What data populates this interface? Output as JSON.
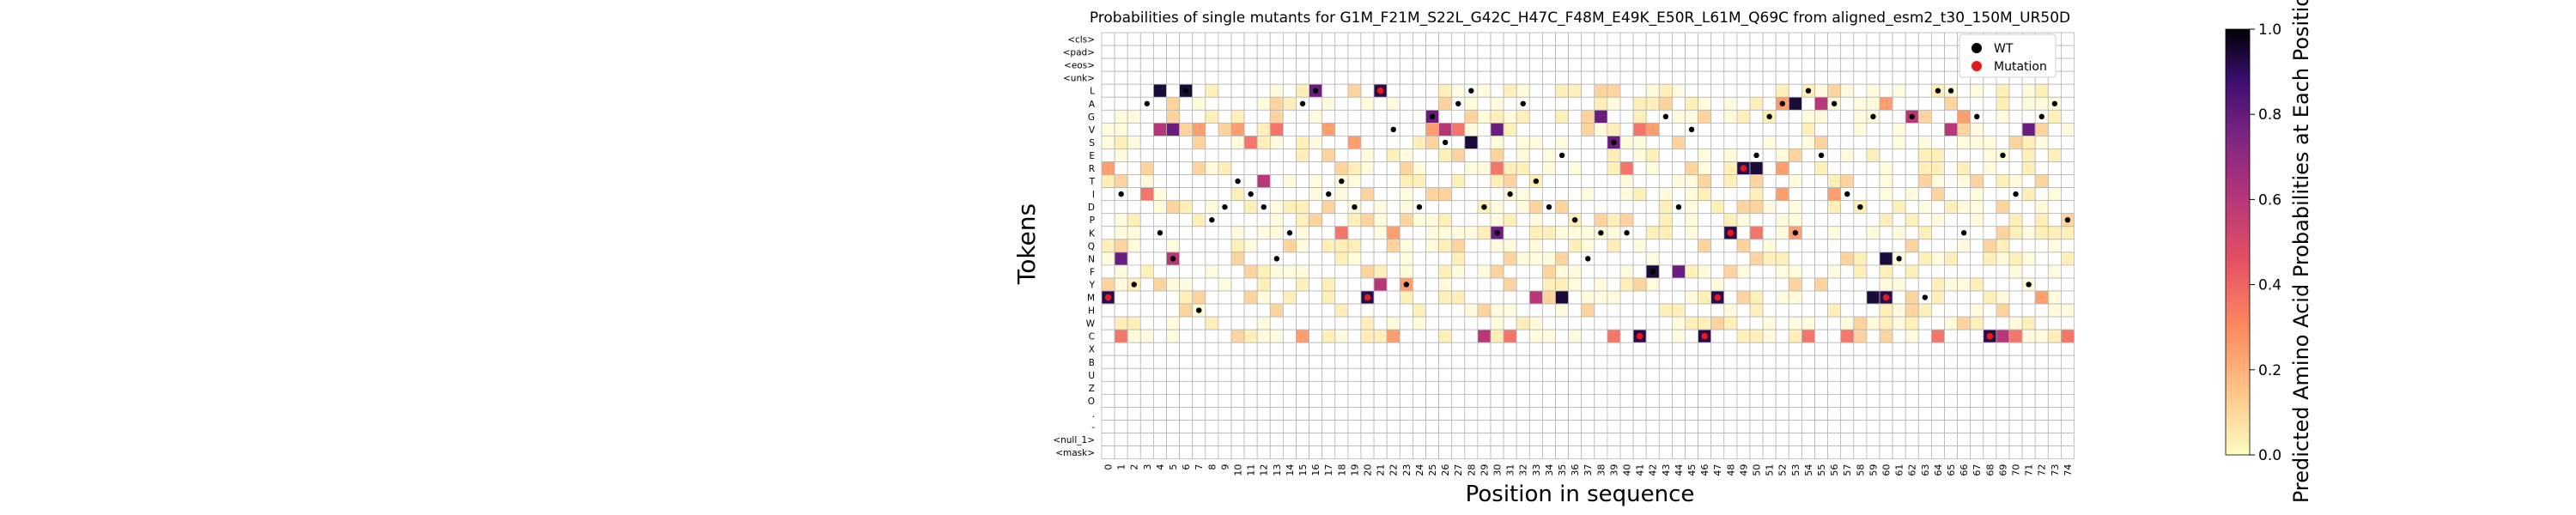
{
  "chart_data": {
    "type": "heatmap",
    "title": "Probabilities of single mutants for G1M_F21M_S22L_G42C_H47C_F48M_E49K_E50R_L61M_Q69C from aligned_esm2_t30_150M_UR50D",
    "xlabel": "Position in sequence",
    "ylabel": "Tokens",
    "x_ticks": [
      "0",
      "1",
      "2",
      "3",
      "4",
      "5",
      "6",
      "7",
      "8",
      "9",
      "10",
      "11",
      "12",
      "13",
      "14",
      "15",
      "16",
      "17",
      "18",
      "19",
      "20",
      "21",
      "22",
      "23",
      "24",
      "25",
      "26",
      "27",
      "28",
      "29",
      "30",
      "31",
      "32",
      "33",
      "34",
      "35",
      "36",
      "37",
      "38",
      "39",
      "40",
      "41",
      "42",
      "43",
      "44",
      "45",
      "46",
      "47",
      "48",
      "49",
      "50",
      "51",
      "52",
      "53",
      "54",
      "55",
      "56",
      "57",
      "58",
      "59",
      "60",
      "61",
      "62",
      "63",
      "64",
      "65",
      "66",
      "67",
      "68",
      "69",
      "70",
      "71",
      "72",
      "73",
      "74"
    ],
    "y_ticks": [
      "<cls>",
      "<pad>",
      "<eos>",
      "<unk>",
      "L",
      "A",
      "G",
      "V",
      "S",
      "E",
      "R",
      "T",
      "I",
      "D",
      "P",
      "K",
      "Q",
      "N",
      "F",
      "Y",
      "M",
      "H",
      "W",
      "C",
      "X",
      "B",
      "U",
      "Z",
      "O",
      ".",
      "-",
      "<null_1>",
      "<mask>"
    ],
    "colorbar": {
      "label": "Predicted Amino Acid Probabilities at Each Position",
      "range": [
        0.0,
        1.0
      ],
      "ticks": [
        "0.0",
        "0.2",
        "0.4",
        "0.6",
        "0.8",
        "1.0"
      ],
      "colormap": "magma_r"
    },
    "legend": {
      "placement": "top-right",
      "entries": [
        {
          "label": "WT",
          "color": "#000000"
        },
        {
          "label": "Mutation",
          "color": "#e41a1c"
        }
      ]
    },
    "wt_residues": [
      "M",
      "I",
      "Y",
      "A",
      "K",
      "N",
      "L",
      "H",
      "P",
      "D",
      "T",
      "I",
      "D",
      "N",
      "K",
      "A",
      "L",
      "I",
      "T",
      "D",
      "M",
      "L",
      "V",
      "Y",
      "D",
      "G",
      "S",
      "A",
      "L",
      "D",
      "K",
      "I",
      "A",
      "T",
      "D",
      "E",
      "P",
      "N",
      "K",
      "S",
      "K",
      "C",
      "F",
      "G",
      "D",
      "V",
      "C",
      "M",
      "K",
      "R",
      "E",
      "G",
      "A",
      "K",
      "L",
      "E",
      "A",
      "I",
      "D",
      "G",
      "M",
      "N",
      "G",
      "M",
      "L",
      "L",
      "K",
      "G",
      "C",
      "E",
      "I",
      "Y",
      "G",
      "A",
      "P"
    ],
    "mutations": [
      [
        0,
        "M"
      ],
      [
        20,
        "M"
      ],
      [
        21,
        "L"
      ],
      [
        41,
        "C"
      ],
      [
        46,
        "C"
      ],
      [
        47,
        "M"
      ],
      [
        48,
        "K"
      ],
      [
        49,
        "R"
      ],
      [
        60,
        "M"
      ],
      [
        68,
        "C"
      ]
    ],
    "strong_cells": [
      [
        4,
        "L"
      ],
      [
        6,
        "L"
      ],
      [
        16,
        "L"
      ],
      [
        21,
        "L"
      ],
      [
        5,
        "V"
      ],
      [
        4,
        "V"
      ],
      [
        12,
        "T"
      ],
      [
        25,
        "G"
      ],
      [
        26,
        "V"
      ],
      [
        28,
        "S"
      ],
      [
        30,
        "V"
      ],
      [
        42,
        "F"
      ],
      [
        44,
        "F"
      ],
      [
        50,
        "R"
      ],
      [
        38,
        "G"
      ],
      [
        48,
        "K"
      ],
      [
        46,
        "C"
      ],
      [
        69,
        "C"
      ],
      [
        41,
        "C"
      ],
      [
        29,
        "C"
      ],
      [
        20,
        "M"
      ],
      [
        0,
        "M"
      ],
      [
        1,
        "N"
      ],
      [
        5,
        "N"
      ],
      [
        71,
        "V"
      ],
      [
        65,
        "V"
      ],
      [
        55,
        "A"
      ],
      [
        62,
        "G"
      ],
      [
        59,
        "M"
      ],
      [
        53,
        "A"
      ],
      [
        60,
        "N"
      ],
      [
        47,
        "M"
      ],
      [
        39,
        "S"
      ],
      [
        33,
        "M"
      ],
      [
        35,
        "M"
      ],
      [
        30,
        "K"
      ],
      [
        21,
        "Y"
      ]
    ],
    "medium_cells": [
      [
        7,
        "V"
      ],
      [
        10,
        "V"
      ],
      [
        13,
        "V"
      ],
      [
        17,
        "V"
      ],
      [
        18,
        "K"
      ],
      [
        22,
        "K"
      ],
      [
        27,
        "V"
      ],
      [
        19,
        "S"
      ],
      [
        30,
        "R"
      ],
      [
        40,
        "R"
      ],
      [
        41,
        "V"
      ],
      [
        52,
        "I"
      ],
      [
        50,
        "K"
      ],
      [
        53,
        "K"
      ],
      [
        56,
        "I"
      ],
      [
        64,
        "C"
      ],
      [
        66,
        "G"
      ],
      [
        70,
        "C"
      ],
      [
        74,
        "C"
      ],
      [
        52,
        "R"
      ],
      [
        54,
        "C"
      ],
      [
        57,
        "C"
      ],
      [
        3,
        "I"
      ],
      [
        0,
        "R"
      ],
      [
        1,
        "C"
      ],
      [
        22,
        "C"
      ],
      [
        31,
        "C"
      ],
      [
        39,
        "C"
      ],
      [
        23,
        "Y"
      ],
      [
        42,
        "V"
      ],
      [
        11,
        "S"
      ],
      [
        15,
        "C"
      ],
      [
        25,
        "V"
      ],
      [
        52,
        "A"
      ],
      [
        60,
        "A"
      ],
      [
        72,
        "M"
      ]
    ]
  }
}
